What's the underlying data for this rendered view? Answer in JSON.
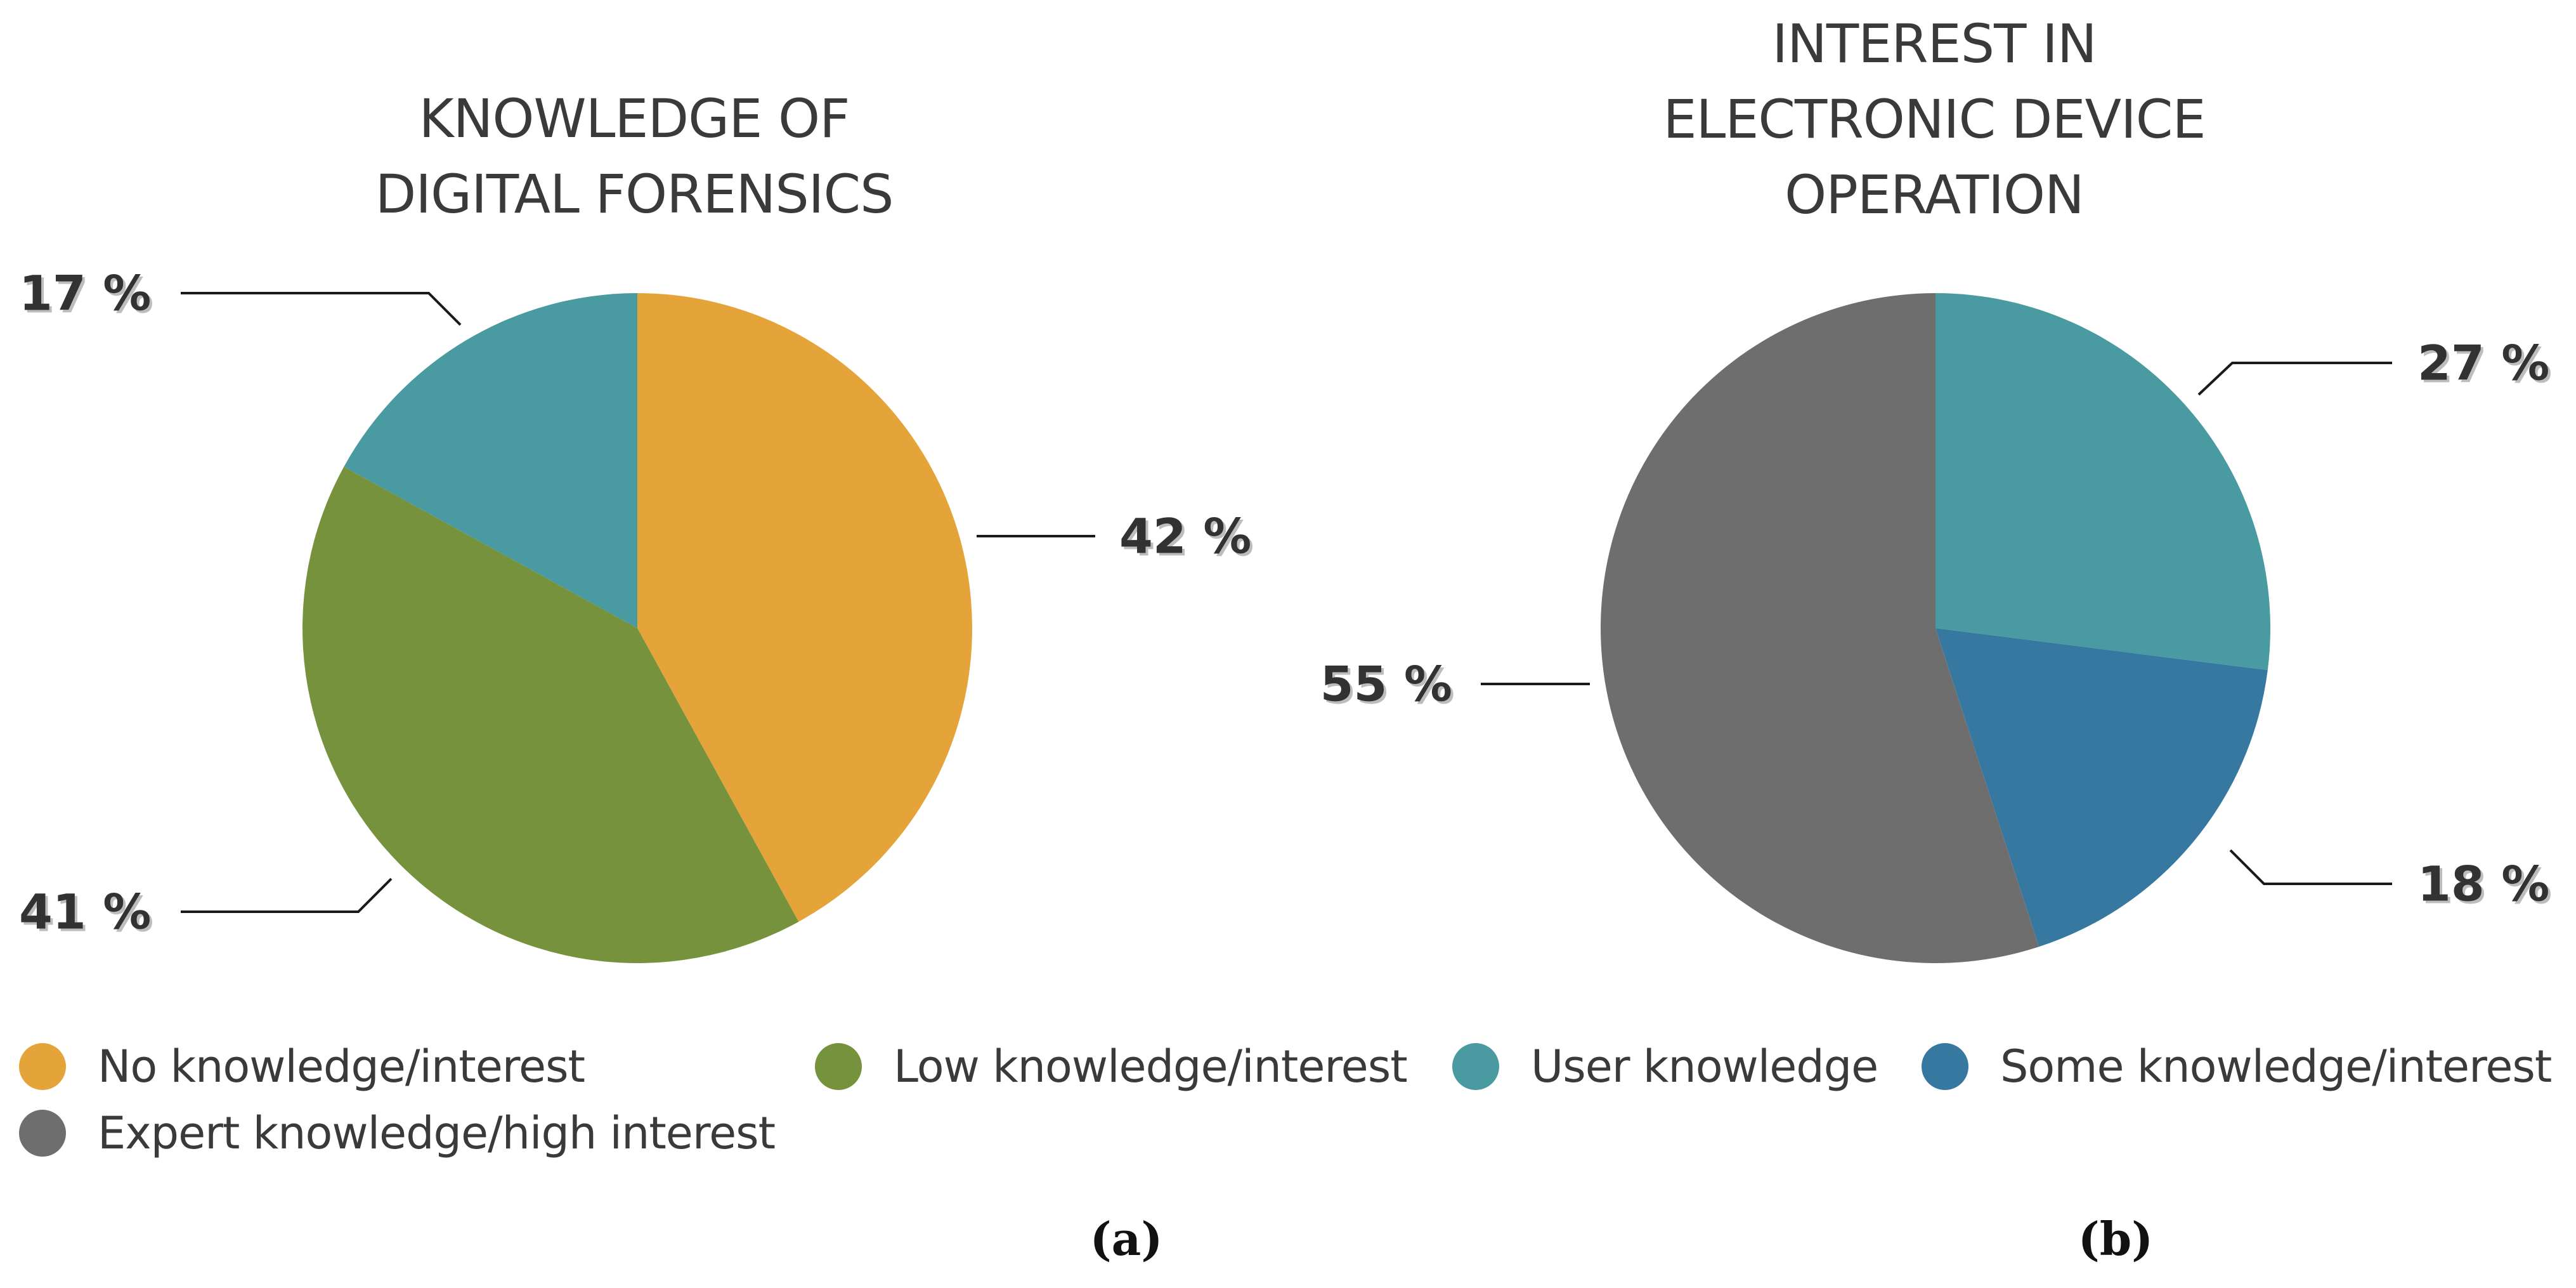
{
  "chart_data": [
    {
      "type": "pie",
      "title": [
        "KNOWLEDGE OF",
        "DIGITAL FORENSICS"
      ],
      "sublabel": "(a)",
      "slices": [
        {
          "name": "No knowledge/interest",
          "value": 42,
          "label": "42 %",
          "color": "#E5A43A"
        },
        {
          "name": "Low knowledge/interest",
          "value": 41,
          "label": "41 %",
          "color": "#76923C"
        },
        {
          "name": "User knowledge",
          "value": 17,
          "label": "17 %",
          "color": "#4A9AA1"
        }
      ]
    },
    {
      "type": "pie",
      "title": [
        "INTEREST IN",
        "ELECTRONIC DEVICE",
        "OPERATION"
      ],
      "sublabel": "(b)",
      "slices": [
        {
          "name": "User knowledge",
          "value": 27,
          "label": "27 %",
          "color": "#4A9AA1"
        },
        {
          "name": "Some knowledge/interest",
          "value": 18,
          "label": "18 %",
          "color": "#3778A1"
        },
        {
          "name": "Expert knowledge/high interest",
          "value": 55,
          "label": "55 %",
          "color": "#6E6E6E"
        }
      ]
    }
  ],
  "legend": [
    {
      "label": "No knowledge/interest",
      "color": "#E5A43A"
    },
    {
      "label": "Low knowledge/interest",
      "color": "#76923C"
    },
    {
      "label": "User knowledge",
      "color": "#4A9AA1"
    },
    {
      "label": "Some knowledge/interest",
      "color": "#3778A1"
    },
    {
      "label": "Expert knowledge/high interest",
      "color": "#6E6E6E"
    }
  ]
}
